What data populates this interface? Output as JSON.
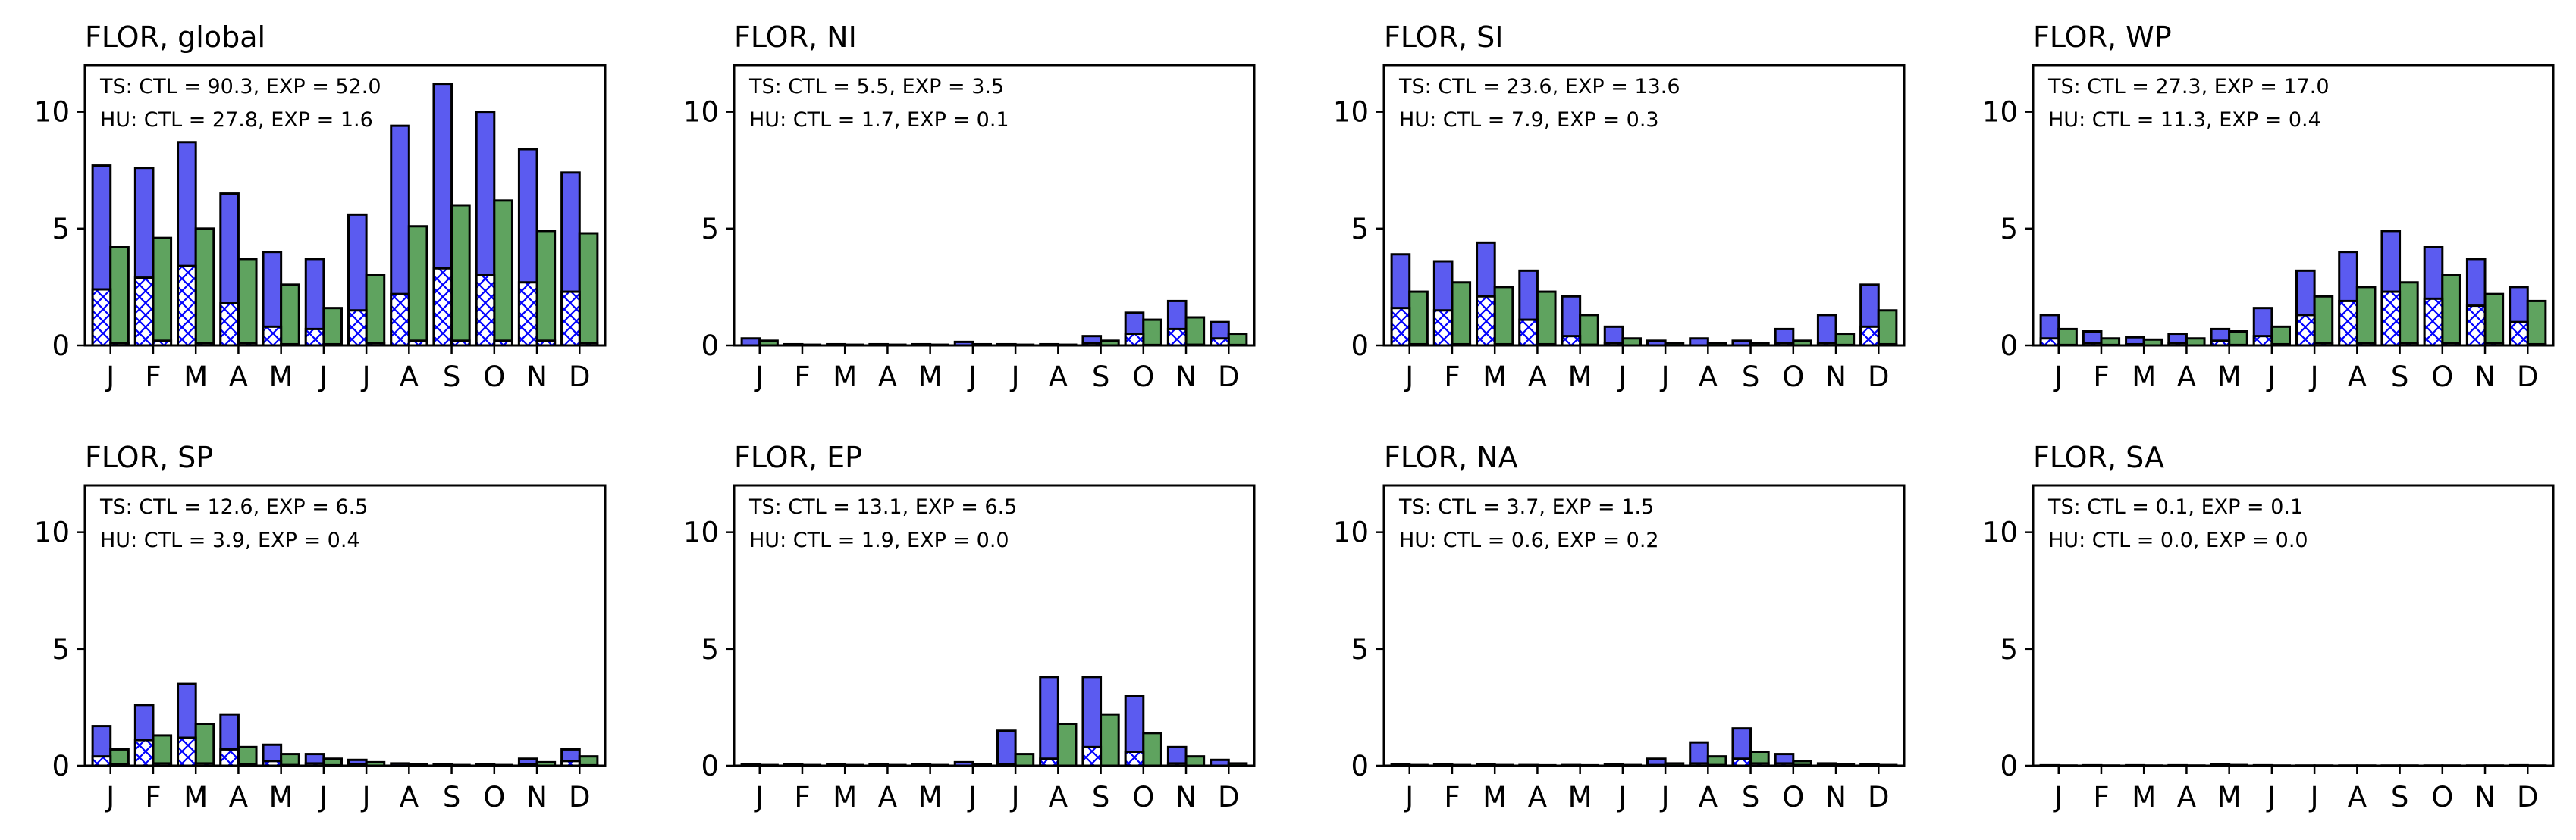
{
  "colors": {
    "ctl": "#5b5bf0",
    "exp": "#5fa35f",
    "hatch": "#0000ff",
    "edge": "#000000"
  },
  "chart_data": [
    {
      "type": "bar",
      "title": "FLOR, global",
      "categories": [
        "J",
        "F",
        "M",
        "A",
        "M",
        "J",
        "J",
        "A",
        "S",
        "O",
        "N",
        "D"
      ],
      "ylim": [
        0,
        12
      ],
      "yticks": [
        0,
        5,
        10
      ],
      "annotations": [
        "TS: CTL = 90.3, EXP = 52.0",
        "HU: CTL = 27.8, EXP = 1.6"
      ],
      "series": [
        {
          "key": "ts_ctl",
          "values": [
            7.7,
            7.6,
            8.7,
            6.5,
            4.0,
            3.7,
            5.6,
            9.4,
            11.2,
            10.0,
            8.4,
            7.4
          ]
        },
        {
          "key": "ts_exp",
          "values": [
            4.2,
            4.6,
            5.0,
            3.7,
            2.6,
            1.6,
            3.0,
            5.1,
            6.0,
            6.2,
            4.9,
            4.8
          ]
        },
        {
          "key": "hu_ctl",
          "values": [
            2.4,
            2.9,
            3.4,
            1.8,
            0.8,
            0.7,
            1.5,
            2.2,
            3.3,
            3.0,
            2.7,
            2.3
          ]
        },
        {
          "key": "hu_exp",
          "values": [
            0.1,
            0.2,
            0.1,
            0.1,
            0.05,
            0.05,
            0.1,
            0.2,
            0.2,
            0.2,
            0.2,
            0.1
          ]
        }
      ]
    },
    {
      "type": "bar",
      "title": "FLOR, NI",
      "categories": [
        "J",
        "F",
        "M",
        "A",
        "M",
        "J",
        "J",
        "A",
        "S",
        "O",
        "N",
        "D"
      ],
      "ylim": [
        0,
        12
      ],
      "yticks": [
        0,
        5,
        10
      ],
      "annotations": [
        "TS: CTL = 5.5, EXP = 3.5",
        "HU: CTL = 1.7, EXP = 0.1"
      ],
      "series": [
        {
          "key": "ts_ctl",
          "values": [
            0.3,
            0.05,
            0.05,
            0.05,
            0.05,
            0.15,
            0.05,
            0.05,
            0.4,
            1.4,
            1.9,
            1.0
          ]
        },
        {
          "key": "ts_exp",
          "values": [
            0.2,
            0.03,
            0.03,
            0.03,
            0.03,
            0.05,
            0.03,
            0.03,
            0.2,
            1.1,
            1.2,
            0.5
          ]
        },
        {
          "key": "hu_ctl",
          "values": [
            0,
            0,
            0,
            0,
            0,
            0,
            0,
            0,
            0.1,
            0.5,
            0.7,
            0.3
          ]
        },
        {
          "key": "hu_exp",
          "values": [
            0,
            0,
            0,
            0,
            0,
            0,
            0,
            0,
            0,
            0.02,
            0.03,
            0.02
          ]
        }
      ]
    },
    {
      "type": "bar",
      "title": "FLOR, SI",
      "categories": [
        "J",
        "F",
        "M",
        "A",
        "M",
        "J",
        "J",
        "A",
        "S",
        "O",
        "N",
        "D"
      ],
      "ylim": [
        0,
        12
      ],
      "yticks": [
        0,
        5,
        10
      ],
      "annotations": [
        "TS: CTL = 23.6, EXP = 13.6",
        "HU: CTL = 7.9, EXP = 0.3"
      ],
      "series": [
        {
          "key": "ts_ctl",
          "values": [
            3.9,
            3.6,
            4.4,
            3.2,
            2.1,
            0.8,
            0.2,
            0.3,
            0.2,
            0.7,
            1.3,
            2.6
          ]
        },
        {
          "key": "ts_exp",
          "values": [
            2.3,
            2.7,
            2.5,
            2.3,
            1.3,
            0.3,
            0.1,
            0.1,
            0.1,
            0.2,
            0.5,
            1.5
          ]
        },
        {
          "key": "hu_ctl",
          "values": [
            1.6,
            1.5,
            2.1,
            1.1,
            0.4,
            0.1,
            0,
            0,
            0,
            0.1,
            0.1,
            0.8
          ]
        },
        {
          "key": "hu_exp",
          "values": [
            0.05,
            0.05,
            0.05,
            0.05,
            0.03,
            0,
            0,
            0,
            0,
            0,
            0.02,
            0.05
          ]
        }
      ]
    },
    {
      "type": "bar",
      "title": "FLOR, WP",
      "categories": [
        "J",
        "F",
        "M",
        "A",
        "M",
        "J",
        "J",
        "A",
        "S",
        "O",
        "N",
        "D"
      ],
      "ylim": [
        0,
        12
      ],
      "yticks": [
        0,
        5,
        10
      ],
      "annotations": [
        "TS: CTL = 27.3, EXP = 17.0",
        "HU: CTL = 11.3, EXP = 0.4"
      ],
      "series": [
        {
          "key": "ts_ctl",
          "values": [
            1.3,
            0.6,
            0.35,
            0.5,
            0.7,
            1.6,
            3.2,
            4.0,
            4.9,
            4.2,
            3.7,
            2.5
          ]
        },
        {
          "key": "ts_exp",
          "values": [
            0.7,
            0.3,
            0.25,
            0.3,
            0.6,
            0.8,
            2.1,
            2.5,
            2.7,
            3.0,
            2.2,
            1.9
          ]
        },
        {
          "key": "hu_ctl",
          "values": [
            0.3,
            0.1,
            0.05,
            0.1,
            0.2,
            0.4,
            1.3,
            1.9,
            2.3,
            2.0,
            1.7,
            1.0
          ]
        },
        {
          "key": "hu_exp",
          "values": [
            0.02,
            0.02,
            0,
            0,
            0.02,
            0.05,
            0.1,
            0.1,
            0.1,
            0.1,
            0.1,
            0.05
          ]
        }
      ]
    },
    {
      "type": "bar",
      "title": "FLOR, SP",
      "categories": [
        "J",
        "F",
        "M",
        "A",
        "M",
        "J",
        "J",
        "A",
        "S",
        "O",
        "N",
        "D"
      ],
      "ylim": [
        0,
        12
      ],
      "yticks": [
        0,
        5,
        10
      ],
      "annotations": [
        "TS: CTL = 12.6, EXP = 6.5",
        "HU: CTL = 3.9, EXP = 0.4"
      ],
      "series": [
        {
          "key": "ts_ctl",
          "values": [
            1.7,
            2.6,
            3.5,
            2.2,
            0.9,
            0.5,
            0.25,
            0.1,
            0.05,
            0.05,
            0.3,
            0.7
          ]
        },
        {
          "key": "ts_exp",
          "values": [
            0.7,
            1.3,
            1.8,
            0.8,
            0.5,
            0.3,
            0.15,
            0.05,
            0.03,
            0.03,
            0.15,
            0.4
          ]
        },
        {
          "key": "hu_ctl",
          "values": [
            0.4,
            1.1,
            1.2,
            0.7,
            0.2,
            0.1,
            0.05,
            0,
            0,
            0,
            0.05,
            0.2
          ]
        },
        {
          "key": "hu_exp",
          "values": [
            0.05,
            0.1,
            0.1,
            0.05,
            0.03,
            0.02,
            0,
            0,
            0,
            0,
            0,
            0.02
          ]
        }
      ]
    },
    {
      "type": "bar",
      "title": "FLOR, EP",
      "categories": [
        "J",
        "F",
        "M",
        "A",
        "M",
        "J",
        "J",
        "A",
        "S",
        "O",
        "N",
        "D"
      ],
      "ylim": [
        0,
        12
      ],
      "yticks": [
        0,
        5,
        10
      ],
      "annotations": [
        "TS: CTL = 13.1, EXP = 6.5",
        "HU: CTL = 1.9, EXP = 0.0"
      ],
      "series": [
        {
          "key": "ts_ctl",
          "values": [
            0.05,
            0.05,
            0.05,
            0.05,
            0.05,
            0.15,
            1.5,
            3.8,
            3.8,
            3.0,
            0.8,
            0.25
          ]
        },
        {
          "key": "ts_exp",
          "values": [
            0.03,
            0.03,
            0.03,
            0.03,
            0.03,
            0.07,
            0.5,
            1.8,
            2.2,
            1.4,
            0.4,
            0.1
          ]
        },
        {
          "key": "hu_ctl",
          "values": [
            0,
            0,
            0,
            0,
            0,
            0,
            0.05,
            0.3,
            0.8,
            0.6,
            0.1,
            0
          ]
        },
        {
          "key": "hu_exp",
          "values": [
            0,
            0,
            0,
            0,
            0,
            0,
            0,
            0,
            0,
            0,
            0,
            0
          ]
        }
      ]
    },
    {
      "type": "bar",
      "title": "FLOR, NA",
      "categories": [
        "J",
        "F",
        "M",
        "A",
        "M",
        "J",
        "J",
        "A",
        "S",
        "O",
        "N",
        "D"
      ],
      "ylim": [
        0,
        12
      ],
      "yticks": [
        0,
        5,
        10
      ],
      "annotations": [
        "TS: CTL = 3.7, EXP = 1.5",
        "HU: CTL = 0.6, EXP = 0.2"
      ],
      "series": [
        {
          "key": "ts_ctl",
          "values": [
            0.05,
            0.05,
            0.05,
            0.03,
            0.03,
            0.07,
            0.3,
            1.0,
            1.6,
            0.5,
            0.1,
            0.05
          ]
        },
        {
          "key": "ts_exp",
          "values": [
            0.03,
            0.03,
            0.03,
            0.02,
            0.02,
            0.03,
            0.1,
            0.4,
            0.6,
            0.2,
            0.05,
            0.03
          ]
        },
        {
          "key": "hu_ctl",
          "values": [
            0,
            0,
            0,
            0,
            0,
            0,
            0.03,
            0.1,
            0.3,
            0.1,
            0.02,
            0
          ]
        },
        {
          "key": "hu_exp",
          "values": [
            0,
            0,
            0,
            0,
            0,
            0,
            0,
            0.03,
            0.1,
            0.03,
            0,
            0
          ]
        }
      ]
    },
    {
      "type": "bar",
      "title": "FLOR, SA",
      "categories": [
        "J",
        "F",
        "M",
        "A",
        "M",
        "J",
        "J",
        "A",
        "S",
        "O",
        "N",
        "D"
      ],
      "ylim": [
        0,
        12
      ],
      "yticks": [
        0,
        5,
        10
      ],
      "annotations": [
        "TS: CTL = 0.1, EXP = 0.1",
        "HU: CTL = 0.0, EXP = 0.0"
      ],
      "series": [
        {
          "key": "ts_ctl",
          "values": [
            0.02,
            0.02,
            0.02,
            0.02,
            0.05,
            0.02,
            0.01,
            0.01,
            0.01,
            0.01,
            0.01,
            0.02
          ]
        },
        {
          "key": "ts_exp",
          "values": [
            0.01,
            0.01,
            0.01,
            0.01,
            0.03,
            0.01,
            0.01,
            0.01,
            0.01,
            0.01,
            0.01,
            0.01
          ]
        },
        {
          "key": "hu_ctl",
          "values": [
            0,
            0,
            0,
            0,
            0,
            0,
            0,
            0,
            0,
            0,
            0,
            0
          ]
        },
        {
          "key": "hu_exp",
          "values": [
            0,
            0,
            0,
            0,
            0,
            0,
            0,
            0,
            0,
            0,
            0,
            0
          ]
        }
      ]
    }
  ]
}
